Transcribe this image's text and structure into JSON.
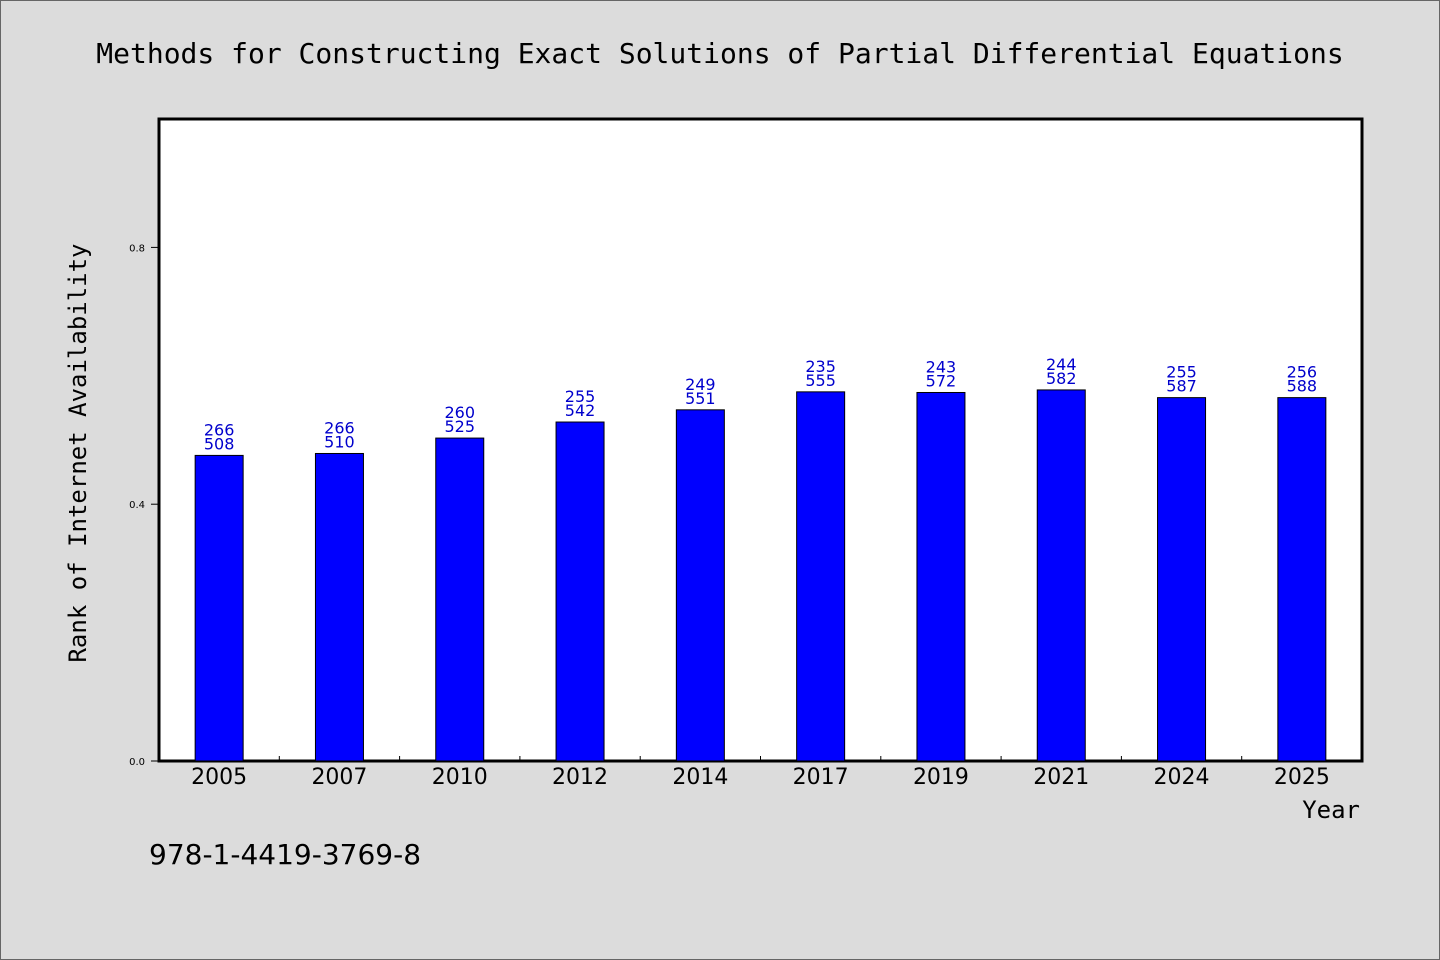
{
  "chart_data": {
    "type": "bar",
    "title": "Methods for Constructing Exact Solutions of Partial Differential Equations",
    "xlabel": "Year",
    "ylabel": "Rank of Internet Availability",
    "footer_text": "978-1-4419-3769-8",
    "categories": [
      "2005",
      "2007",
      "2010",
      "2012",
      "2014",
      "2017",
      "2019",
      "2021",
      "2024",
      "2025"
    ],
    "values": [
      0.476,
      0.479,
      0.503,
      0.528,
      0.547,
      0.575,
      0.574,
      0.578,
      0.566,
      0.566
    ],
    "labels_top": [
      "266",
      "266",
      "260",
      "255",
      "249",
      "235",
      "243",
      "244",
      "255",
      "256"
    ],
    "labels_bottom": [
      "508",
      "510",
      "525",
      "542",
      "551",
      "555",
      "572",
      "582",
      "587",
      "588"
    ],
    "ylim": [
      0,
      1.0
    ],
    "yticks": [
      0.0,
      0.4,
      0.8
    ],
    "ytick_labels": [
      "0.0",
      "0.4",
      "0.8"
    ],
    "grid": false,
    "legend": "none",
    "colors": {
      "background": "#dcdcdc",
      "plot_background": "#ffffff",
      "bar_fill": "#0000ff",
      "bar_stroke": "#000000",
      "data_label": "#0000cc",
      "text": "#000000"
    }
  }
}
